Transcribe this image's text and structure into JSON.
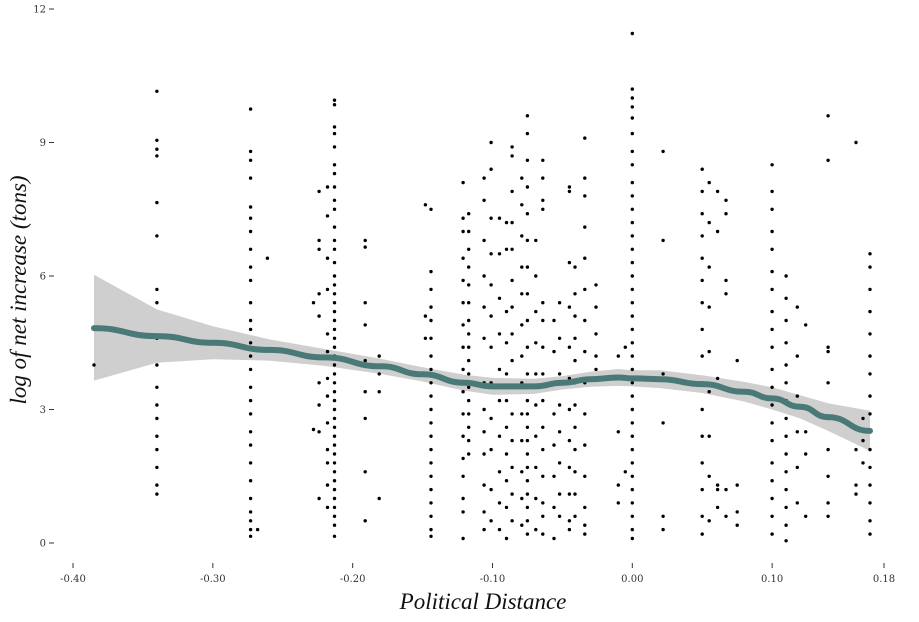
{
  "chart_data": {
    "type": "scatter",
    "title": "",
    "xlabel": "Political Distance",
    "ylabel": "log of net increase (tons)",
    "xlim": [
      -0.4,
      0.18
    ],
    "ylim": [
      0,
      12
    ],
    "x_ticks": [
      "-0.40",
      "-0.30",
      "-0.20",
      "-0.10",
      "0.00",
      "0.10",
      "0.18"
    ],
    "x_tick_values": [
      -0.4,
      -0.3,
      -0.2,
      -0.1,
      0.0,
      0.1,
      0.18
    ],
    "y_ticks": [
      "0",
      "3",
      "6",
      "9",
      "12"
    ],
    "y_tick_values": [
      0,
      3,
      6,
      9,
      12
    ],
    "grid": false,
    "colors": {
      "points": "#000000",
      "smooth_line": "#4a7a78",
      "ribbon": "#cccccc"
    },
    "columns": [
      {
        "x": -0.385,
        "y": [
          4.0
        ]
      },
      {
        "x": -0.34,
        "y": [
          10.15,
          9.05,
          8.85,
          8.7,
          7.65,
          6.9,
          5.7,
          5.4,
          4.6,
          4.0,
          3.5,
          3.1,
          2.8,
          2.4,
          2.1,
          1.7,
          1.3,
          1.1
        ]
      },
      {
        "x": -0.273,
        "y": [
          9.75,
          8.8,
          8.6,
          8.2,
          7.55,
          7.3,
          7.0,
          6.6,
          6.2,
          5.9,
          5.4,
          5.0,
          4.8,
          4.5,
          4.2,
          3.9,
          3.5,
          3.2,
          2.9,
          2.5,
          2.2,
          1.8,
          1.4,
          1.0,
          0.7,
          0.5,
          0.3,
          0.15
        ]
      },
      {
        "x": -0.268,
        "y": [
          0.3
        ]
      },
      {
        "x": -0.261,
        "y": [
          6.4
        ]
      },
      {
        "x": -0.228,
        "y": [
          5.4,
          2.55
        ]
      },
      {
        "x": -0.224,
        "y": [
          7.9,
          6.8,
          6.6,
          5.6,
          5.1,
          4.2,
          3.6,
          3.1,
          2.5,
          1.0
        ]
      },
      {
        "x": -0.218,
        "y": [
          8.0,
          7.35,
          6.4,
          5.7,
          4.7,
          4.3,
          3.7,
          3.3,
          2.7,
          2.1,
          1.8,
          1.3,
          0.8
        ]
      },
      {
        "x": -0.213,
        "y": [
          9.95,
          9.85,
          9.35,
          9.2,
          8.9,
          8.5,
          8.3,
          8.0,
          7.7,
          7.5,
          7.1,
          6.8,
          6.6,
          6.3,
          6.0,
          5.8,
          5.6,
          5.4,
          5.2,
          5.0,
          4.8,
          4.6,
          4.4,
          4.2,
          4.0,
          3.8,
          3.6,
          3.4,
          3.2,
          3.0,
          2.8,
          2.6,
          2.4,
          2.2,
          2.0,
          1.8,
          1.6,
          1.4,
          1.2,
          1.0,
          0.8,
          0.6,
          0.4,
          0.15
        ]
      },
      {
        "x": -0.191,
        "y": [
          6.8,
          6.65,
          5.4,
          4.9,
          4.1,
          3.4,
          2.8,
          1.6,
          0.5
        ]
      },
      {
        "x": -0.181,
        "y": [
          4.2,
          3.8,
          3.4,
          1.0
        ]
      },
      {
        "x": -0.148,
        "y": [
          7.6,
          5.1,
          4.6
        ]
      },
      {
        "x": -0.144,
        "y": [
          7.5,
          6.1,
          5.7,
          5.3,
          5.0,
          4.6,
          4.2,
          3.9,
          3.6,
          3.3,
          3.0,
          2.7,
          2.4,
          2.1,
          1.8,
          1.5,
          1.2,
          0.9,
          0.6,
          0.3,
          0.15
        ]
      },
      {
        "x": -0.121,
        "y": [
          8.1,
          7.3,
          7.0,
          6.4,
          5.9,
          5.4,
          4.9,
          4.4,
          3.9,
          3.4,
          2.9,
          2.4,
          1.9,
          1.5,
          1.0,
          0.7,
          0.1
        ]
      },
      {
        "x": -0.117,
        "y": [
          7.4,
          7.0,
          6.6,
          6.2,
          5.8,
          5.4,
          5.0,
          4.7,
          4.4,
          4.1,
          3.8,
          3.5,
          3.2,
          2.9,
          2.6,
          2.3,
          2.0
        ]
      },
      {
        "x": -0.106,
        "y": [
          8.2,
          7.7,
          6.8,
          6.0,
          5.3,
          4.6,
          3.6,
          3.0,
          2.5,
          2.0,
          1.3,
          0.7,
          0.3
        ]
      },
      {
        "x": -0.101,
        "y": [
          9.0,
          8.4,
          7.3,
          6.5,
          5.8,
          5.1,
          4.4,
          3.6,
          2.8,
          2.1,
          1.2,
          0.5
        ]
      },
      {
        "x": -0.095,
        "y": [
          7.3,
          6.5,
          5.5,
          4.7,
          3.9,
          3.2,
          2.4,
          1.6,
          0.9,
          0.3
        ]
      },
      {
        "x": -0.09,
        "y": [
          7.2,
          6.6,
          5.2,
          4.5,
          3.8,
          3.2,
          2.6,
          2.0,
          1.4,
          0.8,
          0.1
        ]
      },
      {
        "x": -0.086,
        "y": [
          8.9,
          8.7,
          7.9,
          7.2,
          6.6,
          5.9,
          5.3,
          4.7,
          4.1,
          3.5,
          2.9,
          2.3,
          1.7,
          1.1,
          0.5
        ]
      },
      {
        "x": -0.079,
        "y": [
          8.2,
          7.6,
          6.9,
          6.2,
          5.6,
          4.9,
          4.2,
          3.6,
          2.9,
          2.3,
          1.6,
          1.0,
          0.4
        ]
      },
      {
        "x": -0.075,
        "y": [
          9.6,
          9.2,
          8.6,
          8.0,
          7.4,
          6.8,
          6.2,
          5.6,
          5.0,
          4.4,
          3.8,
          3.5,
          3.2,
          2.9,
          2.6,
          2.3,
          2.0,
          1.7,
          1.4,
          1.1,
          0.8,
          0.5,
          0.2
        ]
      },
      {
        "x": -0.069,
        "y": [
          6.8,
          6.0,
          5.2,
          4.5,
          3.8,
          3.1,
          2.4,
          1.7,
          1.0,
          0.3
        ]
      },
      {
        "x": -0.064,
        "y": [
          8.6,
          8.2,
          7.7,
          7.5,
          5.4,
          5.0,
          4.4,
          3.8,
          3.2,
          2.6,
          2.1,
          1.5,
          0.9,
          0.6,
          0.2
        ]
      },
      {
        "x": -0.056,
        "y": [
          5.0,
          4.3,
          3.6,
          2.9,
          2.2,
          1.5,
          0.8,
          0.1
        ]
      },
      {
        "x": -0.052,
        "y": [
          5.4,
          4.6,
          3.8,
          3.1,
          2.5,
          1.8,
          1.1,
          0.6
        ]
      },
      {
        "x": -0.045,
        "y": [
          8.0,
          7.9,
          6.3,
          5.3,
          4.4,
          3.7,
          3.0,
          2.3,
          1.7,
          1.1,
          0.5,
          0.3
        ]
      },
      {
        "x": -0.041,
        "y": [
          6.2,
          5.6,
          5.1,
          4.6,
          4.1,
          3.6,
          3.1,
          2.6,
          2.1,
          1.6,
          1.1,
          0.6
        ]
      },
      {
        "x": -0.034,
        "y": [
          9.1,
          8.2,
          7.8,
          7.1,
          6.4,
          5.7,
          5.0,
          4.3,
          3.6,
          2.9,
          2.2,
          1.5,
          0.8,
          0.4,
          0.2
        ]
      },
      {
        "x": -0.026,
        "y": [
          5.8,
          5.3,
          4.7,
          4.2,
          3.9
        ]
      },
      {
        "x": -0.01,
        "y": [
          4.2,
          2.5,
          1.3,
          0.9
        ]
      },
      {
        "x": -0.005,
        "y": [
          4.4,
          1.6
        ]
      },
      {
        "x": 0.0,
        "y": [
          11.45,
          10.2,
          10.0,
          9.8,
          9.55,
          9.2,
          8.8,
          8.5,
          8.1,
          7.8,
          7.5,
          7.2,
          6.9,
          6.6,
          6.3,
          6.0,
          5.7,
          5.4,
          5.1,
          4.8,
          4.5,
          4.2,
          3.9,
          3.6,
          3.3,
          3.0,
          2.7,
          2.4,
          2.1,
          1.8,
          1.5,
          1.2,
          0.9,
          0.6,
          0.3,
          0.1
        ]
      },
      {
        "x": 0.022,
        "y": [
          8.8,
          6.8,
          3.8,
          2.7,
          0.6,
          0.3
        ]
      },
      {
        "x": 0.05,
        "y": [
          8.4,
          7.9,
          7.4,
          6.9,
          6.4,
          5.9,
          5.4,
          4.8,
          4.2,
          3.6,
          3.0,
          2.4,
          1.8,
          1.2,
          0.6,
          0.2
        ]
      },
      {
        "x": 0.055,
        "y": [
          8.1,
          7.2,
          6.2,
          5.3,
          4.3,
          3.4,
          2.4,
          1.5,
          0.5
        ]
      },
      {
        "x": 0.061,
        "y": [
          7.9,
          7.0,
          3.7,
          1.3,
          1.2,
          0.8
        ]
      },
      {
        "x": 0.067,
        "y": [
          7.7,
          7.4,
          5.9,
          5.6,
          1.2,
          0.6
        ]
      },
      {
        "x": 0.075,
        "y": [
          4.1,
          1.3,
          0.7,
          0.4
        ]
      },
      {
        "x": 0.1,
        "y": [
          8.5,
          7.9,
          7.5,
          7.0,
          6.6,
          6.1,
          5.7,
          5.2,
          4.8,
          4.4,
          3.9,
          3.5,
          3.1,
          2.7,
          2.3,
          1.8,
          1.4,
          1.0,
          0.6,
          0.2
        ]
      },
      {
        "x": 0.11,
        "y": [
          6.0,
          5.5,
          5.0,
          4.5,
          4.0,
          3.6,
          3.2,
          2.8,
          2.4,
          2.0,
          1.6,
          1.2,
          0.8,
          0.4,
          0.05
        ]
      },
      {
        "x": 0.118,
        "y": [
          5.3,
          4.2,
          3.3,
          2.5,
          1.7,
          0.9
        ]
      },
      {
        "x": 0.124,
        "y": [
          4.9,
          2.5,
          2.0,
          0.6
        ]
      },
      {
        "x": 0.14,
        "y": [
          9.6,
          8.6,
          4.4,
          4.3,
          3.6,
          2.8,
          2.1,
          1.5,
          0.9,
          0.6
        ]
      },
      {
        "x": 0.16,
        "y": [
          9.0,
          2.1,
          1.3,
          1.1
        ]
      },
      {
        "x": 0.165,
        "y": [
          2.8,
          2.3,
          1.8
        ]
      },
      {
        "x": 0.17,
        "y": [
          6.5,
          6.2,
          5.7,
          5.2,
          4.7,
          4.2,
          3.8,
          3.3,
          2.9,
          2.5,
          2.1,
          1.7,
          1.3,
          0.9,
          0.5,
          0.2
        ]
      }
    ],
    "smooth": {
      "x": [
        -0.385,
        -0.34,
        -0.3,
        -0.26,
        -0.22,
        -0.18,
        -0.15,
        -0.12,
        -0.1,
        -0.07,
        -0.05,
        -0.03,
        -0.01,
        0.0,
        0.02,
        0.05,
        0.08,
        0.1,
        0.12,
        0.14,
        0.17
      ],
      "y": [
        4.83,
        4.65,
        4.5,
        4.34,
        4.17,
        3.97,
        3.79,
        3.6,
        3.52,
        3.52,
        3.6,
        3.68,
        3.72,
        3.7,
        3.68,
        3.57,
        3.4,
        3.25,
        3.06,
        2.83,
        2.52
      ],
      "lower": [
        3.65,
        4.05,
        4.13,
        4.1,
        3.98,
        3.8,
        3.63,
        3.42,
        3.33,
        3.35,
        3.45,
        3.51,
        3.53,
        3.52,
        3.48,
        3.37,
        3.18,
        3.0,
        2.8,
        2.52,
        2.07
      ],
      "upper": [
        6.03,
        5.25,
        4.87,
        4.58,
        4.36,
        4.14,
        3.95,
        3.78,
        3.71,
        3.69,
        3.75,
        3.85,
        3.91,
        3.88,
        3.88,
        3.77,
        3.62,
        3.5,
        3.32,
        3.14,
        2.97
      ]
    }
  }
}
